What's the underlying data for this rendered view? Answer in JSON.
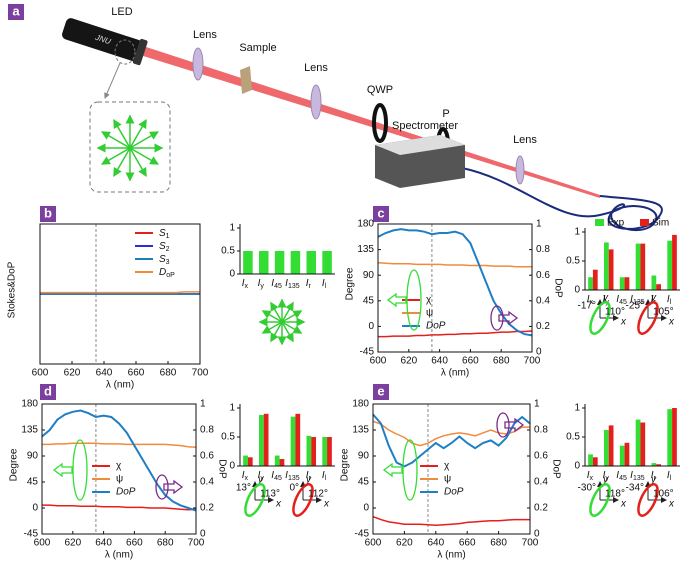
{
  "panel_labels": [
    "a",
    "b",
    "c",
    "d",
    "e"
  ],
  "setup": {
    "led": "LED",
    "led_text": "JNU",
    "lens1": "Lens",
    "sample": "Sample",
    "lens2": "Lens",
    "qwp": "QWP",
    "polarizer": "P",
    "lens3": "Lens",
    "spectrometer": "Spectrometer"
  },
  "chart_data": [
    {
      "type": "line",
      "x": [
        600,
        605,
        610,
        615,
        620,
        625,
        630,
        635,
        640,
        645,
        650,
        655,
        660,
        665,
        670,
        675,
        680,
        685,
        690,
        695,
        700
      ],
      "xlim": [
        600,
        700
      ],
      "xticks": [
        600,
        620,
        640,
        660,
        680,
        700
      ],
      "ylim": [
        -1,
        1
      ],
      "yticks": [],
      "x_label": "λ (nm)",
      "y_label": "Stokes&DoP",
      "vline": 635,
      "series": [
        {
          "name": "S1",
          "color": "#e3201b",
          "values": [
            0,
            0,
            0,
            0,
            0,
            0,
            0,
            0,
            0,
            0,
            0,
            0,
            0,
            0,
            0,
            0,
            0,
            0,
            0,
            0,
            0
          ]
        },
        {
          "name": "S2",
          "color": "#2b2bd9",
          "values": [
            0,
            0,
            0,
            0,
            0,
            0,
            0,
            0,
            0,
            0,
            0,
            0,
            0,
            0,
            0,
            0,
            0,
            0,
            0,
            0,
            0
          ]
        },
        {
          "name": "S3",
          "color": "#1d7fb8",
          "values": [
            0,
            0,
            0,
            0,
            0,
            0,
            0,
            0,
            0,
            0,
            0,
            0,
            0,
            0,
            0,
            0,
            0,
            0,
            0,
            0,
            0
          ]
        },
        {
          "name": "DoP",
          "color": "#f28a3c",
          "values": [
            0.02,
            0.02,
            0.02,
            0.02,
            0.02,
            0.02,
            0.02,
            0.02,
            0.02,
            0.02,
            0.02,
            0.02,
            0.02,
            0.02,
            0.02,
            0.02,
            0.02,
            0.02,
            0.03,
            0.03,
            0.03
          ]
        }
      ]
    },
    {
      "type": "bar",
      "categories": [
        "Ix",
        "Iy",
        "I45",
        "I135",
        "Ir",
        "Il"
      ],
      "ylim": [
        0,
        1
      ],
      "yticks": [
        0,
        0.5,
        1
      ],
      "series": [
        {
          "color": "#33dd33",
          "values": [
            0.5,
            0.5,
            0.5,
            0.5,
            0.5,
            0.5
          ]
        }
      ]
    },
    {
      "type": "line",
      "x": [
        600,
        605,
        610,
        615,
        620,
        625,
        630,
        635,
        640,
        645,
        650,
        655,
        660,
        665,
        670,
        675,
        680,
        685,
        690,
        695,
        700
      ],
      "xlim": [
        600,
        700
      ],
      "xticks": [
        600,
        620,
        640,
        660,
        680,
        700
      ],
      "ylim": [
        -45,
        180
      ],
      "yticks": [
        -45,
        0,
        45,
        90,
        135,
        180
      ],
      "y2lim": [
        0,
        1
      ],
      "y2ticks": [
        0,
        0.2,
        0.4,
        0.6,
        0.8,
        1
      ],
      "x_label": "λ (nm)",
      "y_label": "Degree",
      "y2_label": "DoP",
      "vline": 635,
      "series": [
        {
          "name": "χ",
          "color": "#e3201b",
          "values": [
            -18,
            -18,
            -17,
            -17,
            -17,
            -16,
            -16,
            -15,
            -15,
            -14,
            -14,
            -13,
            -13,
            -12,
            -12,
            -11,
            -10,
            -10,
            -9,
            -9,
            -8
          ]
        },
        {
          "name": "ψ",
          "color": "#f28a3c",
          "values": [
            112,
            111,
            110,
            110,
            110,
            109,
            109,
            109,
            109,
            108,
            108,
            108,
            107,
            107,
            107,
            106,
            106,
            106,
            105,
            105,
            105
          ]
        },
        {
          "name": "DoP",
          "color": "#1f7fc4",
          "axis": "y2",
          "values": [
            0.9,
            0.93,
            0.95,
            0.96,
            0.95,
            0.95,
            0.94,
            0.92,
            0.93,
            0.93,
            0.94,
            0.92,
            0.85,
            0.7,
            0.55,
            0.4,
            0.3,
            0.22,
            0.17,
            0.14,
            0.13
          ]
        }
      ]
    },
    {
      "type": "bar",
      "categories": [
        "Ix",
        "Iy",
        "I45",
        "I135",
        "Ir",
        "Il"
      ],
      "ylim": [
        0,
        1
      ],
      "yticks": [
        0,
        0.5,
        1
      ],
      "series": [
        {
          "name": "Exp",
          "color": "#33dd33",
          "values": [
            0.22,
            0.82,
            0.22,
            0.8,
            0.25,
            0.85
          ]
        },
        {
          "name": "Sim",
          "color": "#e3201b",
          "values": [
            0.35,
            0.7,
            0.22,
            0.8,
            0.1,
            0.95
          ]
        }
      ],
      "annotations": [
        "-17°",
        "110°",
        "-25°",
        "105°"
      ],
      "sketch_axes": [
        "x",
        "y"
      ]
    },
    {
      "type": "line",
      "x": [
        600,
        605,
        610,
        615,
        620,
        625,
        630,
        635,
        640,
        645,
        650,
        655,
        660,
        665,
        670,
        675,
        680,
        685,
        690,
        695,
        700
      ],
      "xlim": [
        600,
        700
      ],
      "xticks": [
        600,
        620,
        640,
        660,
        680,
        700
      ],
      "ylim": [
        -45,
        180
      ],
      "yticks": [
        -45,
        0,
        45,
        90,
        135,
        180
      ],
      "y2lim": [
        0,
        1
      ],
      "y2ticks": [
        0,
        0.2,
        0.4,
        0.6,
        0.8,
        1
      ],
      "x_label": "λ (nm)",
      "y_label": "Degree",
      "y2_label": "DoP",
      "vline": 635,
      "series": [
        {
          "name": "χ",
          "color": "#e3201b",
          "values": [
            5,
            5,
            4,
            4,
            4,
            3,
            3,
            3,
            2,
            2,
            2,
            1,
            1,
            1,
            0,
            0,
            0,
            -1,
            -2,
            -3,
            -2
          ]
        },
        {
          "name": "ψ",
          "color": "#f28a3c",
          "values": [
            110,
            110,
            111,
            111,
            112,
            112,
            112,
            112,
            111,
            111,
            111,
            110,
            110,
            110,
            110,
            110,
            110,
            109,
            108,
            106,
            105
          ]
        },
        {
          "name": "DoP",
          "color": "#1f7fc4",
          "axis": "y2",
          "values": [
            0.75,
            0.8,
            0.88,
            0.92,
            0.94,
            0.95,
            0.93,
            0.9,
            0.91,
            0.9,
            0.85,
            0.78,
            0.68,
            0.58,
            0.48,
            0.38,
            0.3,
            0.25,
            0.22,
            0.2,
            0.18
          ]
        }
      ]
    },
    {
      "type": "bar",
      "categories": [
        "Ix",
        "Iy",
        "I45",
        "I135",
        "Ir",
        "Il"
      ],
      "ylim": [
        0,
        1
      ],
      "yticks": [
        0,
        0.5,
        1
      ],
      "series": [
        {
          "color": "#33dd33",
          "values": [
            0.18,
            0.88,
            0.18,
            0.85,
            0.52,
            0.5
          ]
        },
        {
          "color": "#e3201b",
          "values": [
            0.15,
            0.9,
            0.12,
            0.9,
            0.5,
            0.5
          ]
        }
      ],
      "annotations": [
        "13°",
        "113°",
        "0°",
        "112°"
      ],
      "sketch_axes": [
        "x",
        "y"
      ]
    },
    {
      "type": "line",
      "x": [
        600,
        605,
        610,
        615,
        620,
        625,
        630,
        635,
        640,
        645,
        650,
        655,
        660,
        665,
        670,
        675,
        680,
        685,
        690,
        695,
        700
      ],
      "xlim": [
        600,
        700
      ],
      "xticks": [
        600,
        620,
        640,
        660,
        680,
        700
      ],
      "ylim": [
        -45,
        180
      ],
      "yticks": [
        -45,
        0,
        45,
        90,
        135,
        180
      ],
      "y2lim": [
        0,
        1
      ],
      "y2ticks": [
        0,
        0.2,
        0.4,
        0.6,
        0.8,
        1
      ],
      "x_label": "λ (nm)",
      "y_label": "Degree",
      "y2_label": "DoP",
      "vline": 635,
      "series": [
        {
          "name": "χ",
          "color": "#e3201b",
          "values": [
            -15,
            -20,
            -24,
            -26,
            -28,
            -28,
            -28,
            -29,
            -30,
            -29,
            -28,
            -27,
            -25,
            -24,
            -23,
            -22,
            -22,
            -21,
            -20,
            -20,
            -20
          ]
        },
        {
          "name": "ψ",
          "color": "#f28a3c",
          "values": [
            150,
            145,
            135,
            128,
            122,
            112,
            108,
            112,
            120,
            125,
            128,
            130,
            128,
            125,
            130,
            135,
            130,
            128,
            132,
            140,
            140
          ]
        },
        {
          "name": "DoP",
          "color": "#1f7fc4",
          "axis": "y2",
          "values": [
            0.92,
            0.85,
            0.68,
            0.55,
            0.52,
            0.55,
            0.6,
            0.65,
            0.7,
            0.66,
            0.7,
            0.75,
            0.7,
            0.66,
            0.7,
            0.72,
            0.68,
            0.74,
            0.85,
            0.9,
            0.85
          ]
        }
      ]
    },
    {
      "type": "bar",
      "categories": [
        "Ix",
        "Iy",
        "I45",
        "I135",
        "Ir",
        "Il"
      ],
      "ylim": [
        0,
        1
      ],
      "yticks": [
        0,
        0.5,
        1
      ],
      "series": [
        {
          "color": "#33dd33",
          "values": [
            0.2,
            0.62,
            0.35,
            0.8,
            0.05,
            0.98
          ]
        },
        {
          "color": "#e3201b",
          "values": [
            0.15,
            0.7,
            0.4,
            0.75,
            0.03,
            1
          ]
        }
      ],
      "annotations": [
        "-30°",
        "118°",
        "-34°",
        "106°"
      ],
      "sketch_axes": [
        "x",
        "y"
      ]
    }
  ]
}
